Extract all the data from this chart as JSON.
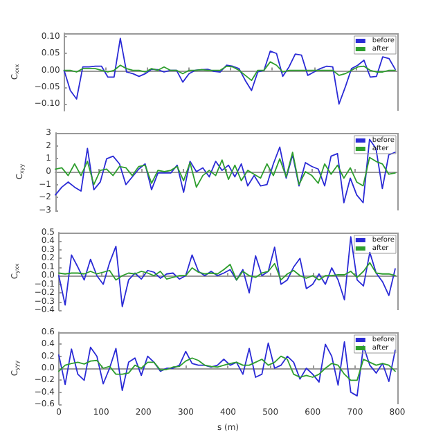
{
  "chart_data": [
    {
      "type": "line",
      "ylabel": "C$_{xxx}$",
      "x": [
        0,
        15,
        30,
        45,
        60,
        75,
        90,
        105,
        120,
        135,
        150,
        165,
        180,
        195,
        210,
        225,
        240,
        255,
        270,
        285,
        300,
        315,
        330,
        345,
        360,
        375,
        390,
        405,
        420,
        435,
        450,
        465,
        480,
        495,
        510,
        525,
        540,
        555,
        570,
        585,
        600,
        615,
        630,
        645,
        660,
        675,
        690,
        705,
        720,
        735,
        750,
        765,
        780,
        795
      ],
      "xlim": [
        0,
        800
      ],
      "xticks": [
        0,
        100,
        200,
        300,
        400,
        500,
        600,
        700,
        800
      ],
      "ylim": [
        -0.12,
        0.11
      ],
      "yticks": [
        {
          "value": -0.1,
          "label": "−0.10"
        },
        {
          "value": -0.05,
          "label": "−0.05"
        },
        {
          "value": 0,
          "label": "0.00"
        },
        {
          "value": 0.05,
          "label": "0.05"
        },
        {
          "value": 0.1,
          "label": "0.10"
        }
      ],
      "tick_labels": "y",
      "legend": "top right",
      "marker": "none",
      "line_style": "solid",
      "series": [
        {
          "name": "before",
          "color": "#2b2bd6",
          "values": [
            0,
            -0.06,
            -0.085,
            0.01,
            0.01,
            0.012,
            0.012,
            -0.02,
            -0.02,
            0.095,
            -0.005,
            -0.01,
            -0.018,
            -0.01,
            0.003,
            0.002,
            -0.005,
            0,
            0,
            -0.035,
            -0.01,
            0,
            0.002,
            0.003,
            -0.003,
            -0.005,
            0.015,
            0.012,
            0.005,
            -0.03,
            -0.06,
            -0.005,
            0,
            0.057,
            0.05,
            -0.018,
            0.01,
            0.048,
            0.045,
            -0.015,
            -0.005,
            0.005,
            0.012,
            0.01,
            -0.1,
            -0.05,
            0.005,
            0.015,
            0.03,
            -0.02,
            -0.018,
            0.04,
            0.035,
            0.003
          ]
        },
        {
          "name": "after",
          "color": "#2e9e2e",
          "values": [
            0,
            0,
            -0.005,
            0.005,
            0.005,
            0.005,
            0,
            -0.005,
            0,
            0.015,
            0.005,
            0,
            0,
            -0.005,
            0.005,
            0,
            0.01,
            0,
            0,
            -0.01,
            0,
            0,
            0.002,
            0,
            0,
            0,
            0.012,
            0.01,
            0,
            -0.015,
            -0.03,
            0,
            0,
            0.025,
            0.015,
            -0.005,
            0,
            0,
            0,
            0,
            0,
            0,
            0,
            0,
            -0.015,
            -0.01,
            0,
            0.01,
            0.012,
            0,
            -0.005,
            -0.005,
            0,
            0
          ]
        }
      ]
    },
    {
      "type": "line",
      "ylabel": "C$_{xyy}$",
      "x": [
        0,
        15,
        30,
        45,
        60,
        75,
        90,
        105,
        120,
        135,
        150,
        165,
        180,
        195,
        210,
        225,
        240,
        255,
        270,
        285,
        300,
        315,
        330,
        345,
        360,
        375,
        390,
        405,
        420,
        435,
        450,
        465,
        480,
        495,
        510,
        525,
        540,
        555,
        570,
        585,
        600,
        615,
        630,
        645,
        660,
        675,
        690,
        705,
        720,
        735,
        750,
        765,
        780,
        795
      ],
      "xlim": [
        0,
        800
      ],
      "xticks": [
        0,
        100,
        200,
        300,
        400,
        500,
        600,
        700,
        800
      ],
      "ylim": [
        -3,
        3
      ],
      "yticks": [
        {
          "value": -3,
          "label": "−3"
        },
        {
          "value": -2,
          "label": "−2"
        },
        {
          "value": -1,
          "label": "−1"
        },
        0,
        1,
        2,
        3
      ],
      "tick_labels": "y",
      "legend": "top right",
      "marker": "none",
      "line_style": "solid",
      "series": [
        {
          "name": "before",
          "color": "#2b2bd6",
          "values": [
            -1.8,
            -1.2,
            -0.8,
            -1.2,
            -1.5,
            1.8,
            -1.4,
            -0.8,
            1.0,
            1.2,
            0.6,
            -1.0,
            -0.4,
            0.2,
            0.6,
            -1.4,
            -0.1,
            -0.1,
            -0.1,
            0.5,
            -1.6,
            0.8,
            0.0,
            0.3,
            -0.4,
            0.8,
            0.1,
            0.5,
            -0.4,
            0.6,
            -1.1,
            -0.3,
            -1.1,
            -1.0,
            0.6,
            1.9,
            -0.5,
            1.3,
            -1.1,
            0.7,
            0.4,
            0.2,
            -1.1,
            1.2,
            1.4,
            -2.4,
            -0.5,
            -1.8,
            -2.4,
            2.5,
            1.8,
            -1.3,
            1.3,
            1.5
          ]
        },
        {
          "name": "after",
          "color": "#2e9e2e",
          "values": [
            0.2,
            0.3,
            -0.3,
            0.6,
            -0.3,
            0.8,
            -1.0,
            0.1,
            0.2,
            -0.3,
            0.4,
            0.3,
            -0.3,
            0.4,
            0.5,
            -0.9,
            0.1,
            0.0,
            0.1,
            0.4,
            -0.7,
            0.7,
            -1.2,
            -0.3,
            0.1,
            -0.3,
            0.9,
            -0.6,
            0.5,
            -0.7,
            0.1,
            -0.2,
            -0.5,
            0.6,
            -0.3,
            1.0,
            -0.4,
            1.5,
            -1.0,
            0.0,
            -0.3,
            -0.9,
            0.6,
            -0.2,
            0.5,
            -0.5,
            0.3,
            -0.8,
            -1.1,
            1.1,
            0.8,
            0.6,
            -0.2,
            -0.1
          ]
        }
      ]
    },
    {
      "type": "line",
      "ylabel": "C$_{yxx}$",
      "x": [
        0,
        15,
        30,
        45,
        60,
        75,
        90,
        105,
        120,
        135,
        150,
        165,
        180,
        195,
        210,
        225,
        240,
        255,
        270,
        285,
        300,
        315,
        330,
        345,
        360,
        375,
        390,
        405,
        420,
        435,
        450,
        465,
        480,
        495,
        510,
        525,
        540,
        555,
        570,
        585,
        600,
        615,
        630,
        645,
        660,
        675,
        690,
        705,
        720,
        735,
        750,
        765,
        780,
        795
      ],
      "xlim": [
        0,
        800
      ],
      "xticks": [
        0,
        100,
        200,
        300,
        400,
        500,
        600,
        700,
        800
      ],
      "ylim": [
        -0.4,
        0.5
      ],
      "yticks": [
        {
          "value": -0.4,
          "label": "−0.4"
        },
        {
          "value": -0.3,
          "label": "−0.3"
        },
        {
          "value": -0.2,
          "label": "−0.2"
        },
        {
          "value": -0.1,
          "label": "−0.1"
        },
        {
          "value": 0,
          "label": "0.0"
        },
        0.1,
        0.2,
        0.3,
        0.4,
        0.5
      ],
      "tick_labels": "y",
      "legend": "top right",
      "marker": "none",
      "line_style": "solid",
      "series": [
        {
          "name": "before",
          "color": "#2b2bd6",
          "values": [
            0.0,
            -0.34,
            0.24,
            0.1,
            -0.05,
            0.19,
            0.0,
            -0.1,
            0.15,
            0.34,
            -0.36,
            -0.05,
            0.03,
            -0.04,
            0.06,
            0.04,
            -0.03,
            0.02,
            0.03,
            -0.04,
            0.0,
            0.24,
            0.05,
            0.0,
            0.05,
            0.0,
            0.03,
            0.07,
            -0.05,
            0.07,
            -0.2,
            0.23,
            0.0,
            0.05,
            0.33,
            -0.1,
            -0.05,
            0.1,
            0.2,
            -0.15,
            -0.1,
            0.02,
            -0.1,
            0.09,
            -0.05,
            -0.28,
            0.45,
            -0.05,
            -0.12,
            0.27,
            0.03,
            -0.07,
            -0.23,
            0.08
          ]
        },
        {
          "name": "after",
          "color": "#2e9e2e",
          "values": [
            0.03,
            0.02,
            0.03,
            0.03,
            0.02,
            0.05,
            0.02,
            0.04,
            0.06,
            -0.05,
            0.0,
            0.03,
            0.02,
            0.05,
            0.03,
            0.0,
            0.05,
            -0.04,
            -0.02,
            0.0,
            0.0,
            0.09,
            0.04,
            0.02,
            0.03,
            0.02,
            0.07,
            0.13,
            -0.05,
            0.05,
            0.0,
            -0.02,
            0.03,
            0.05,
            0.14,
            -0.05,
            0.02,
            0.06,
            0.0,
            -0.03,
            0.0,
            -0.05,
            0.0,
            0.0,
            0.01,
            0.01,
            0.05,
            -0.02,
            0.05,
            0.15,
            0.03,
            0.02,
            0.02,
            0.0
          ]
        }
      ]
    },
    {
      "type": "line",
      "ylabel": "C$_{yyy}$",
      "xlabel": "s (m)",
      "x": [
        0,
        15,
        30,
        45,
        60,
        75,
        90,
        105,
        120,
        135,
        150,
        165,
        180,
        195,
        210,
        225,
        240,
        255,
        270,
        285,
        300,
        315,
        330,
        345,
        360,
        375,
        390,
        405,
        420,
        435,
        450,
        465,
        480,
        495,
        510,
        525,
        540,
        555,
        570,
        585,
        600,
        615,
        630,
        645,
        660,
        675,
        690,
        705,
        720,
        735,
        750,
        765,
        780,
        795
      ],
      "xlim": [
        0,
        800
      ],
      "xticks": [
        0,
        100,
        200,
        300,
        400,
        500,
        600,
        700,
        800
      ],
      "ylim": [
        -0.6,
        0.6
      ],
      "yticks": [
        {
          "value": -0.6,
          "label": "−0.6"
        },
        {
          "value": -0.4,
          "label": "−0.4"
        },
        {
          "value": -0.2,
          "label": "−0.2"
        },
        {
          "value": 0,
          "label": "0.0"
        },
        0.2,
        0.4,
        0.6
      ],
      "legend": "top right",
      "marker": "none",
      "line_style": "solid",
      "series": [
        {
          "name": "before",
          "color": "#2b2bd6",
          "values": [
            0.22,
            -0.27,
            0.32,
            -0.1,
            -0.2,
            0.35,
            0.2,
            -0.26,
            0.0,
            0.33,
            -0.37,
            0.1,
            0.17,
            -0.12,
            0.2,
            0.1,
            -0.05,
            0.0,
            0.0,
            0.05,
            0.28,
            0.08,
            0.05,
            0.05,
            0.02,
            0.05,
            0.15,
            0.05,
            0.1,
            -0.1,
            0.33,
            -0.15,
            -0.1,
            0.42,
            0.0,
            0.05,
            0.2,
            0.1,
            -0.18,
            0.0,
            -0.1,
            -0.23,
            0.4,
            0.2,
            -0.28,
            0.44,
            -0.4,
            -0.46,
            0.37,
            0.05,
            -0.08,
            0.08,
            -0.22,
            0.3
          ]
        },
        {
          "name": "after",
          "color": "#2e9e2e",
          "values": [
            -0.05,
            0.05,
            0.08,
            0.1,
            0.07,
            0.12,
            0.13,
            0.0,
            0.03,
            -0.1,
            -0.1,
            -0.08,
            0.05,
            0.0,
            0.1,
            0.1,
            -0.03,
            -0.02,
            0.02,
            0.03,
            0.12,
            0.17,
            0.13,
            0.05,
            0.03,
            0.02,
            0.05,
            0.08,
            0.1,
            0.05,
            0.05,
            0.1,
            0.15,
            0.05,
            0.1,
            0.2,
            0.15,
            -0.1,
            -0.15,
            -0.12,
            -0.15,
            -0.1,
            0.0,
            0.08,
            0.05,
            -0.1,
            -0.2,
            -0.2,
            0.15,
            0.1,
            0.05,
            0.08,
            0.05,
            -0.05
          ]
        }
      ]
    }
  ]
}
